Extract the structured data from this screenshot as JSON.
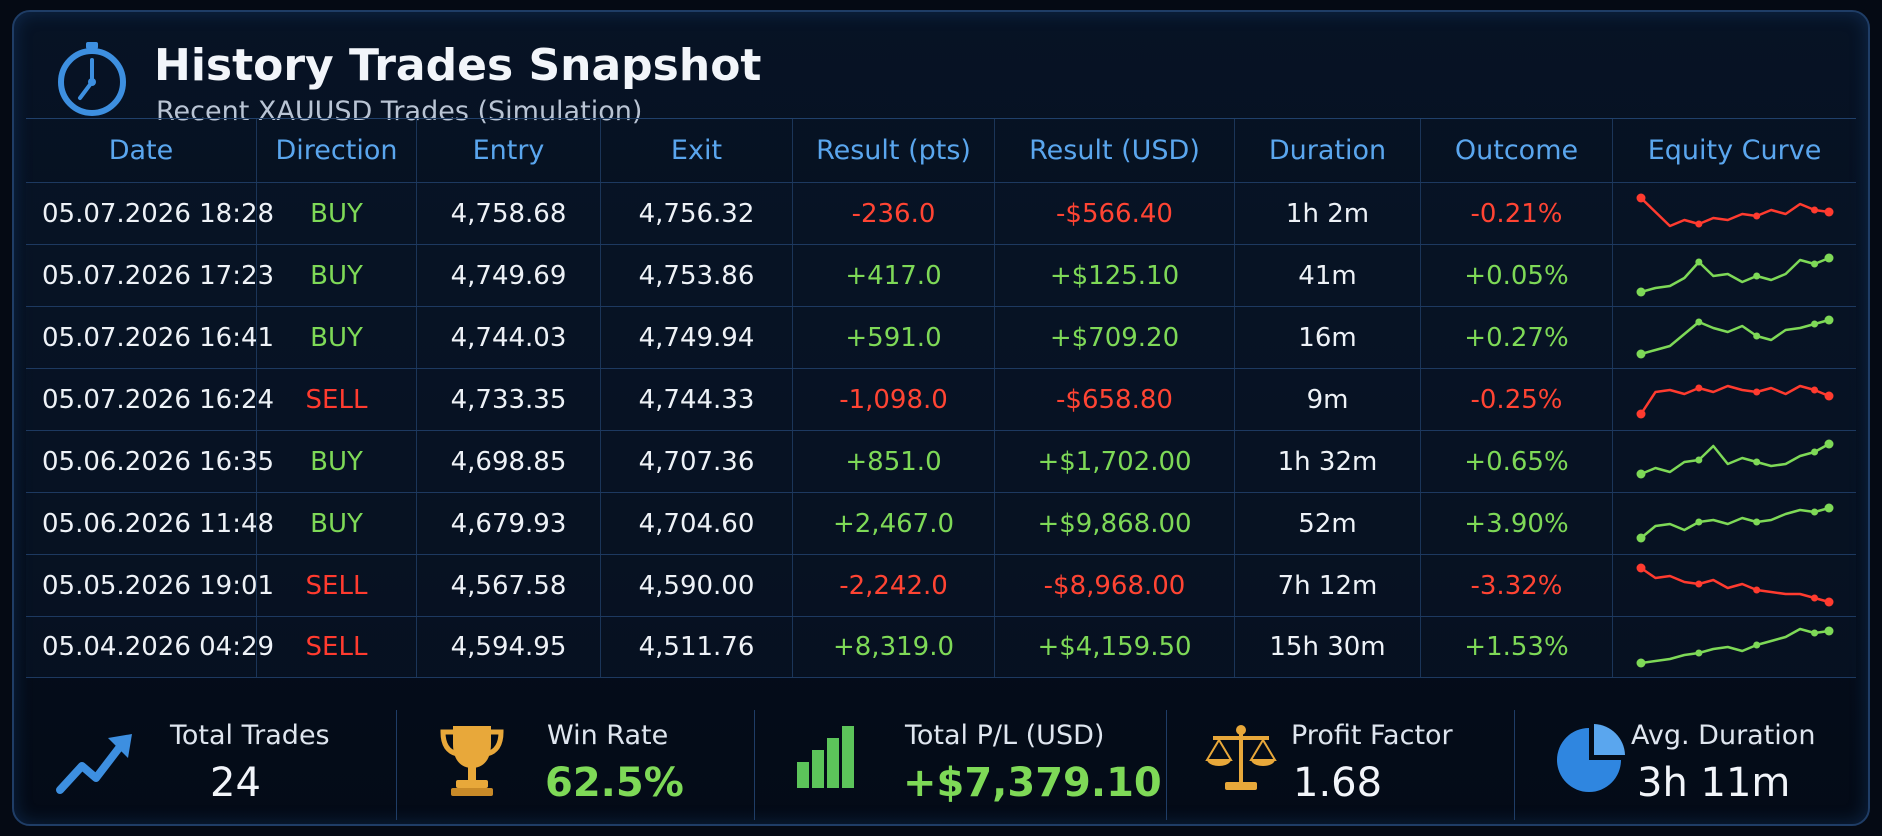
{
  "header": {
    "title": "History Trades Snapshot",
    "subtitle": "Recent XAUUSD Trades (Simulation)",
    "icon": "stopwatch-icon"
  },
  "table": {
    "columns": [
      "Date",
      "Direction",
      "Entry",
      "Exit",
      "Result (pts)",
      "Result (USD)",
      "Duration",
      "Outcome",
      "Equity Curve"
    ],
    "rows": [
      {
        "date": "05.07.2026 18:28",
        "direction": "BUY",
        "entry": "4,758.68",
        "exit": "4,756.32",
        "pts": "-236.0",
        "usd": "-$566.40",
        "duration": "1h 2m",
        "outcome": "-0.21%",
        "sign": "neg",
        "curve": [
          0.9,
          0.55,
          0.2,
          0.35,
          0.25,
          0.4,
          0.35,
          0.5,
          0.45,
          0.6,
          0.5,
          0.75,
          0.6,
          0.55
        ]
      },
      {
        "date": "05.07.2026 17:23",
        "direction": "BUY",
        "entry": "4,749.69",
        "exit": "4,753.86",
        "pts": "+417.0",
        "usd": "+$125.10",
        "duration": "41m",
        "outcome": "+0.05%",
        "sign": "pos",
        "curve": [
          0.1,
          0.2,
          0.25,
          0.45,
          0.85,
          0.5,
          0.55,
          0.35,
          0.5,
          0.4,
          0.55,
          0.9,
          0.8,
          0.95
        ]
      },
      {
        "date": "05.07.2026 16:41",
        "direction": "BUY",
        "entry": "4,744.03",
        "exit": "4,749.94",
        "pts": "+591.0",
        "usd": "+$709.20",
        "duration": "16m",
        "outcome": "+0.27%",
        "sign": "pos",
        "curve": [
          0.1,
          0.2,
          0.3,
          0.6,
          0.9,
          0.75,
          0.65,
          0.8,
          0.55,
          0.45,
          0.7,
          0.75,
          0.85,
          0.95
        ]
      },
      {
        "date": "05.07.2026 16:24",
        "direction": "SELL",
        "entry": "4,733.35",
        "exit": "4,744.33",
        "pts": "-1,098.0",
        "usd": "-$658.80",
        "duration": "9m",
        "outcome": "-0.25%",
        "sign": "neg",
        "curve": [
          0.15,
          0.7,
          0.75,
          0.65,
          0.8,
          0.7,
          0.85,
          0.75,
          0.7,
          0.8,
          0.65,
          0.85,
          0.75,
          0.6
        ]
      },
      {
        "date": "05.06.2026 16:35",
        "direction": "BUY",
        "entry": "4,698.85",
        "exit": "4,707.36",
        "pts": "+851.0",
        "usd": "+$1,702.00",
        "duration": "1h 32m",
        "outcome": "+0.65%",
        "sign": "pos",
        "curve": [
          0.2,
          0.35,
          0.25,
          0.5,
          0.55,
          0.9,
          0.45,
          0.6,
          0.5,
          0.4,
          0.45,
          0.65,
          0.75,
          0.95
        ]
      },
      {
        "date": "05.06.2026 11:48",
        "direction": "BUY",
        "entry": "4,679.93",
        "exit": "4,704.60",
        "pts": "+2,467.0",
        "usd": "+$9,868.00",
        "duration": "52m",
        "outcome": "+3.90%",
        "sign": "pos",
        "curve": [
          0.15,
          0.45,
          0.5,
          0.35,
          0.55,
          0.6,
          0.5,
          0.65,
          0.55,
          0.6,
          0.75,
          0.85,
          0.8,
          0.9
        ]
      },
      {
        "date": "05.05.2026 19:01",
        "direction": "SELL",
        "entry": "4,567.58",
        "exit": "4,590.00",
        "pts": "-2,242.0",
        "usd": "-$8,968.00",
        "duration": "7h 12m",
        "outcome": "-3.32%",
        "sign": "neg",
        "curve": [
          0.95,
          0.7,
          0.75,
          0.6,
          0.55,
          0.65,
          0.45,
          0.55,
          0.4,
          0.35,
          0.3,
          0.3,
          0.2,
          0.1
        ]
      },
      {
        "date": "05.04.2026 04:29",
        "direction": "SELL",
        "entry": "4,594.95",
        "exit": "4,511.76",
        "pts": "+8,319.0",
        "usd": "+$4,159.50",
        "duration": "15h 30m",
        "outcome": "+1.53%",
        "sign": "pos",
        "curve": [
          0.1,
          0.15,
          0.2,
          0.3,
          0.35,
          0.45,
          0.5,
          0.4,
          0.55,
          0.65,
          0.75,
          0.95,
          0.85,
          0.9
        ]
      }
    ]
  },
  "stats": [
    {
      "label": "Total Trades",
      "value": "24",
      "icon": "trend-up-arrow-icon"
    },
    {
      "label": "Win Rate",
      "value": "62.5%",
      "icon": "trophy-icon"
    },
    {
      "label": "Total P/L (USD)",
      "value": "+$7,379.10",
      "icon": "bar-chart-icon"
    },
    {
      "label": "Profit Factor",
      "value": "1.68",
      "icon": "balance-scale-icon"
    },
    {
      "label": "Avg. Duration",
      "value": "3h 11m",
      "icon": "pie-chart-icon"
    }
  ],
  "colors": {
    "positive": "#7ed957",
    "negative": "#ff3b2f",
    "accent": "#5aa6ee",
    "gold": "#e8a83a"
  }
}
